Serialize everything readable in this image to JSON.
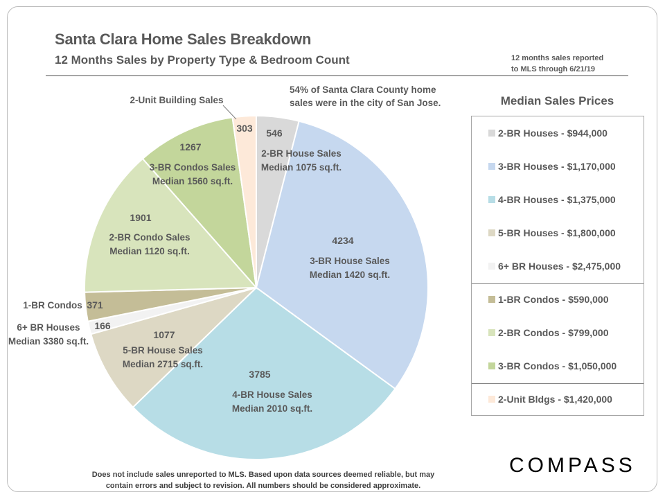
{
  "header": {
    "title": "Santa Clara Home Sales Breakdown",
    "subtitle": "12 Months Sales by Property Type & Bedroom Count",
    "note_lines": [
      "12 months sales reported",
      "to MLS through 6/21/19"
    ]
  },
  "chart_data": {
    "type": "pie",
    "start_angle_deg": 0,
    "direction": "clockwise",
    "slices": [
      {
        "value": 546,
        "color": "#d9d9d9",
        "label_lines": [
          "2-BR House Sales",
          "Median 1075 sq.ft."
        ]
      },
      {
        "value": 4234,
        "color": "#c6d8ef",
        "label_lines": [
          "3-BR House Sales",
          "Median 1420 sq.ft."
        ]
      },
      {
        "value": 3785,
        "color": "#b7dde6",
        "label_lines": [
          "4-BR House Sales",
          "Median 2010 sq.ft."
        ]
      },
      {
        "value": 1077,
        "color": "#ddd8c4",
        "label_lines": [
          "5-BR House Sales",
          "Median 2715 sq.ft."
        ]
      },
      {
        "value": 166,
        "color": "#f2f2f2",
        "label_lines": [
          "6+ BR Houses",
          "Median 3380 sq.ft."
        ]
      },
      {
        "value": 371,
        "color": "#c4bd97",
        "label_lines": [
          "1-BR Condos"
        ]
      },
      {
        "value": 1901,
        "color": "#d8e4bc",
        "label_lines": [
          "2-BR Condo Sales",
          "Median 1120 sq.ft."
        ]
      },
      {
        "value": 1267,
        "color": "#c3d69b",
        "label_lines": [
          "3-BR Condos Sales",
          "Median 1560 sq.ft."
        ]
      },
      {
        "value": 303,
        "color": "#fde9d9",
        "label_lines": [
          "2-Unit Building Sales"
        ]
      }
    ],
    "annotation_lines": [
      "54% of Santa Clara County home",
      "sales were in the city of San Jose."
    ]
  },
  "legend": {
    "title": "Median Sales Prices",
    "items": [
      {
        "label": "2-BR Houses - $944,000",
        "color": "#d9d9d9"
      },
      {
        "label": "3-BR Houses - $1,170,000",
        "color": "#c6d8ef"
      },
      {
        "label": "4-BR Houses - $1,375,000",
        "color": "#b7dde6"
      },
      {
        "label": "5-BR Houses - $1,800,000",
        "color": "#ddd8c4"
      },
      {
        "label": "6+ BR Houses - $2,475,000",
        "color": "#f2f2f2"
      },
      {
        "label": "1-BR Condos - $590,000",
        "color": "#c4bd97"
      },
      {
        "label": "2-BR Condos - $799,000",
        "color": "#d8e4bc"
      },
      {
        "label": "3-BR Condos - $1,050,000",
        "color": "#c3d69b"
      },
      {
        "label": "2-Unit Bldgs - $1,420,000",
        "color": "#fde9d9"
      }
    ]
  },
  "footer": {
    "lines": [
      "Does not include sales unreported to MLS.  Based upon data sources deemed reliable, but may",
      "contain errors and subject to revision.  All numbers should be considered approximate."
    ]
  },
  "brand": {
    "logo_text": "COMPASS"
  }
}
